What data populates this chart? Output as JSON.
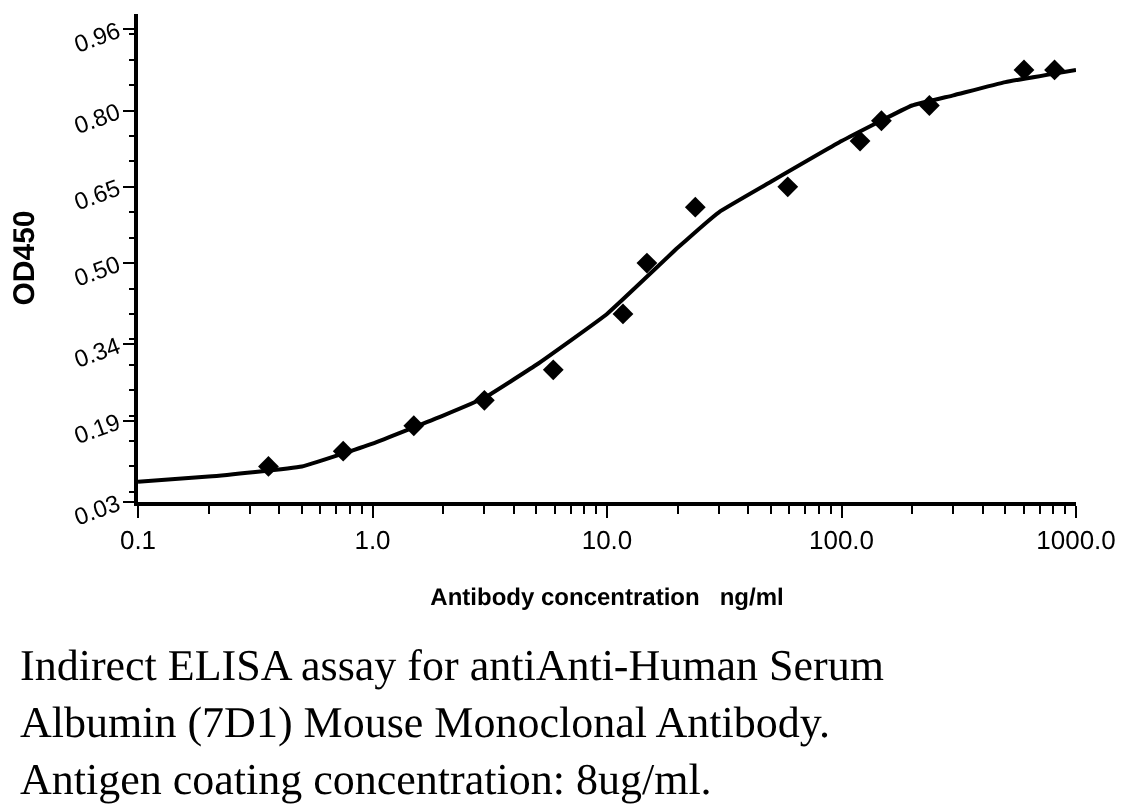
{
  "chart_data": {
    "type": "scatter",
    "xlabel": "Antibody concentration   ng/ml",
    "ylabel": "OD450",
    "annotations": [
      "Indirect ELISA assay for antiAnti-Human Serum\nAlbumin (7D1) Mouse Monoclonal Antibody.\nAntigen coating concentration: 8ug/ml."
    ],
    "series": [
      {
        "color": "#000000",
        "marker": "diamond",
        "x": [
          0.36,
          0.75,
          1.5,
          3.0,
          5.9,
          11.7,
          14.8,
          23.8,
          59,
          120,
          148,
          237,
          600,
          810
        ],
        "values": [
          0.1,
          0.13,
          0.18,
          0.23,
          0.29,
          0.4,
          0.5,
          0.61,
          0.65,
          0.74,
          0.78,
          0.81,
          0.88,
          0.88
        ]
      },
      {
        "type": "line",
        "color": "#000000",
        "line_style": "solid",
        "x": [
          0.1,
          0.2,
          0.5,
          1.0,
          2.0,
          3.0,
          5.0,
          10,
          20,
          30,
          50,
          100,
          200,
          300,
          500,
          1000
        ],
        "values": [
          0.07,
          0.08,
          0.1,
          0.145,
          0.2,
          0.235,
          0.3,
          0.4,
          0.53,
          0.6,
          0.66,
          0.74,
          0.81,
          0.83,
          0.856,
          0.88
        ]
      }
    ],
    "log": "x",
    "xlim": [
      0.1,
      1000
    ],
    "xticks": [
      {
        "value": 0.1,
        "label": "0.1"
      },
      {
        "value": 1,
        "label": "1.0"
      },
      {
        "value": 10,
        "label": "10.0"
      },
      {
        "value": 100,
        "label": "100.0"
      },
      {
        "value": 1000,
        "label": "1000.0"
      }
    ],
    "ylim": [
      0.03,
      0.99
    ],
    "yticks": [
      0.03,
      0.19,
      0.34,
      {
        "value": 0.5,
        "label": "0.50"
      },
      0.65,
      {
        "value": 0.8,
        "label": "0.80"
      },
      0.96
    ]
  }
}
